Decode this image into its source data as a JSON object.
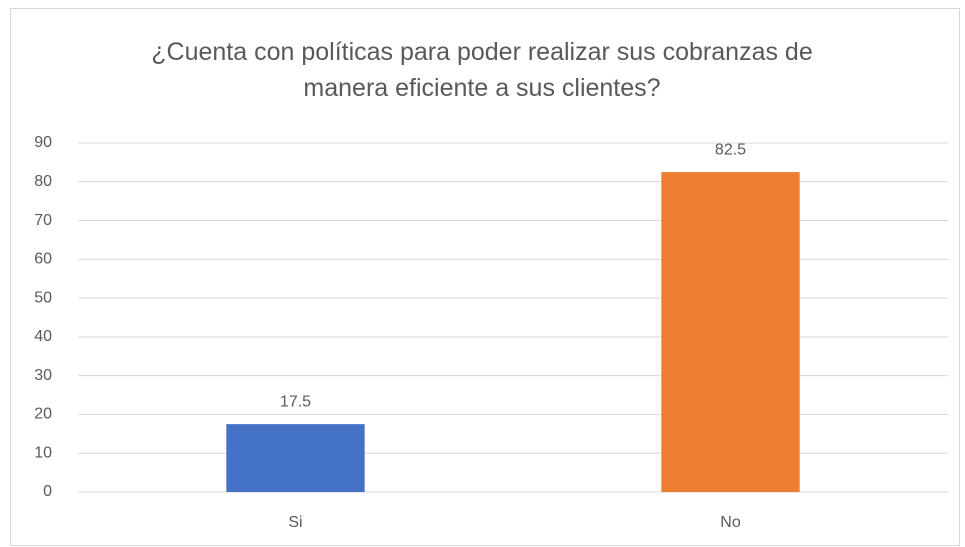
{
  "chart_data": {
    "type": "bar",
    "title": "¿Cuenta con políticas para poder realizar sus cobranzas de manera eficiente a sus clientes?",
    "categories": [
      "Si",
      "No"
    ],
    "values": [
      17.5,
      82.5
    ],
    "colors": [
      "#4472c4",
      "#ed7d31"
    ],
    "ylim": [
      0,
      90
    ],
    "yticks": [
      0,
      10,
      20,
      30,
      40,
      50,
      60,
      70,
      80,
      90
    ],
    "grid": true
  }
}
